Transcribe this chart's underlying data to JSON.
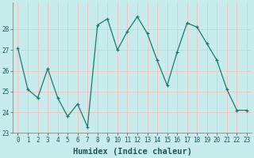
{
  "x": [
    0,
    1,
    2,
    3,
    4,
    5,
    6,
    7,
    8,
    9,
    10,
    11,
    12,
    13,
    14,
    15,
    16,
    17,
    18,
    19,
    20,
    21,
    22,
    23
  ],
  "y": [
    27.1,
    25.1,
    24.7,
    26.1,
    24.7,
    23.8,
    24.4,
    23.3,
    28.2,
    28.5,
    27.0,
    27.9,
    28.6,
    27.8,
    26.5,
    25.3,
    26.9,
    28.3,
    28.1,
    27.3,
    26.5,
    25.1,
    24.1,
    24.1
  ],
  "line_color": "#1a7a6e",
  "bg_color": "#c8ecec",
  "plot_bg_color": "#c8ecec",
  "grid_color": "#e8c8c8",
  "border_color": "#888888",
  "tick_color": "#1a5a5a",
  "xlabel": "Humidex (Indice chaleur)",
  "ylim": [
    23,
    29
  ],
  "xlim": [
    -0.5,
    23.5
  ],
  "yticks": [
    23,
    24,
    25,
    26,
    27,
    28
  ],
  "xticks": [
    0,
    1,
    2,
    3,
    4,
    5,
    6,
    7,
    8,
    9,
    10,
    11,
    12,
    13,
    14,
    15,
    16,
    17,
    18,
    19,
    20,
    21,
    22,
    23
  ],
  "xlabel_fontsize": 7.5,
  "tick_fontsize": 5.5
}
